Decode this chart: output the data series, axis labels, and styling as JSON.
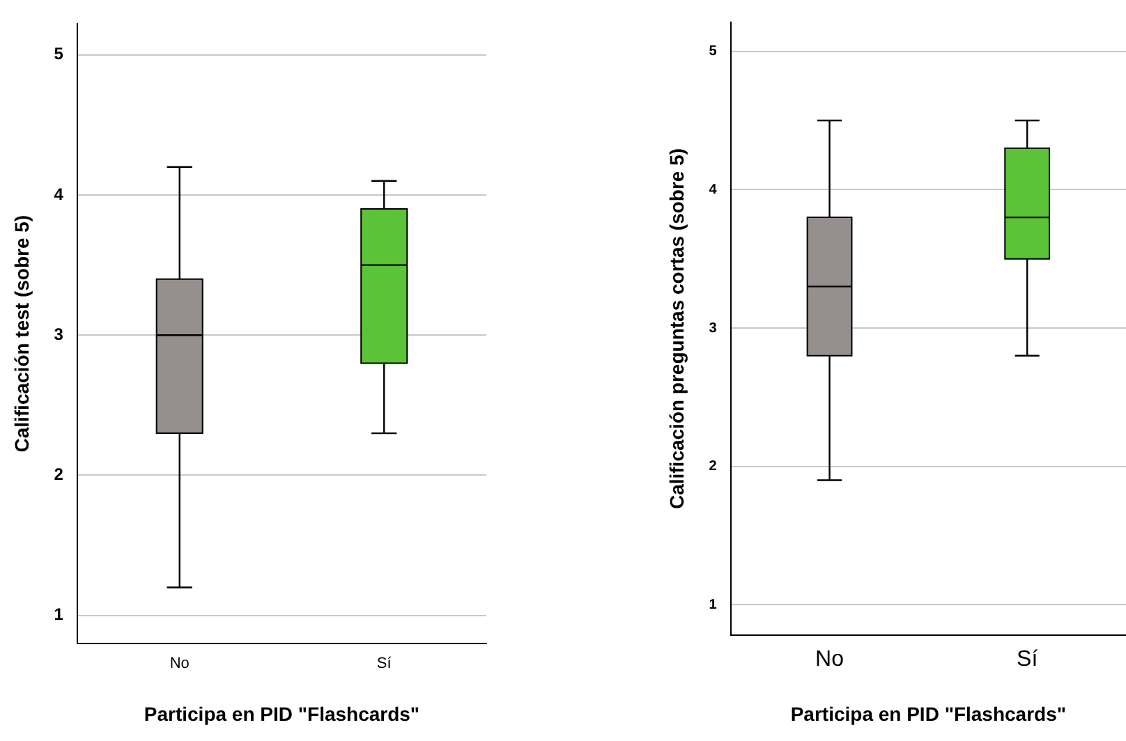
{
  "chart_data": [
    {
      "type": "box",
      "xlabel": "Participa en PID \"Flashcards\"",
      "ylabel": "Calificación test (sobre 5)",
      "categories": [
        "No",
        "Sí"
      ],
      "colors": [
        "#958f8e",
        "#5cc237"
      ],
      "boxes": [
        {
          "low": 1.2,
          "q1": 2.3,
          "median": 3.0,
          "q3": 3.4,
          "high": 4.2
        },
        {
          "low": 2.3,
          "q1": 2.8,
          "median": 3.5,
          "q3": 3.9,
          "high": 4.1
        }
      ],
      "ylim": [
        0.8,
        5.22
      ],
      "yticks": [
        1,
        2,
        3,
        4,
        5
      ],
      "grid": "y"
    },
    {
      "type": "box",
      "xlabel": "Participa en PID \"Flashcards\"",
      "ylabel": "Calificación preguntas cortas (sobre 5)",
      "categories": [
        "No",
        "Sí"
      ],
      "colors": [
        "#958f8e",
        "#5cc237"
      ],
      "boxes": [
        {
          "low": 1.9,
          "q1": 2.8,
          "median": 3.3,
          "q3": 3.8,
          "high": 4.5
        },
        {
          "low": 2.8,
          "q1": 3.5,
          "median": 3.8,
          "q3": 4.3,
          "high": 4.5
        }
      ],
      "ylim": [
        0.78,
        5.21
      ],
      "yticks": [
        1,
        2,
        3,
        4,
        5
      ],
      "grid": "y"
    }
  ]
}
